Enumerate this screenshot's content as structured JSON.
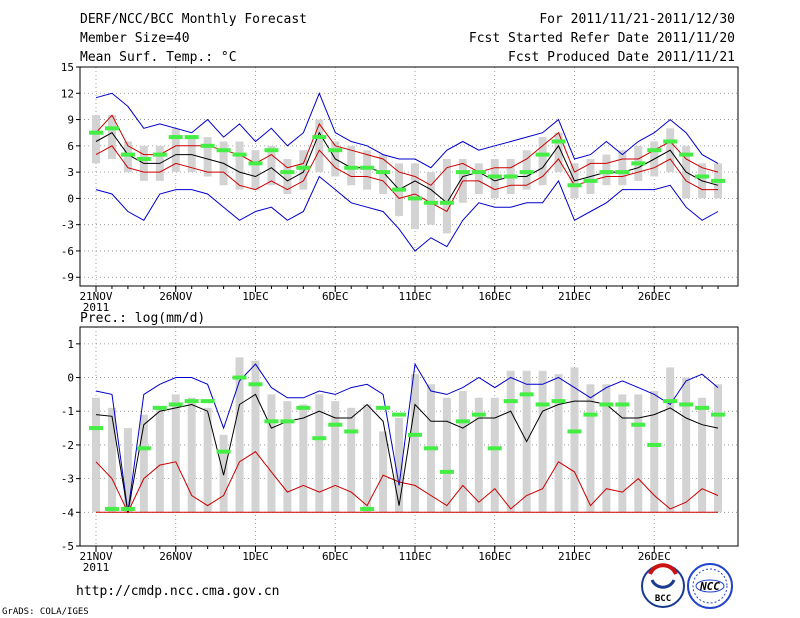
{
  "header": {
    "title": "DERF/NCC/BCC Monthly Forecast",
    "member_size": "Member Size=40",
    "variable": "Mean Surf. Temp.: °C",
    "period": "For 2011/11/21-2011/12/30",
    "started": "Fcst Started Refer Date 2011/11/20",
    "produced": "Fcst Produced Date 2011/11/21"
  },
  "footer": {
    "url": "http://cmdp.ncc.cma.gov.cn",
    "grads_credit": "GrADS: COLA/IGES",
    "logo_bcc": "BCC",
    "logo_ncc": "NCC"
  },
  "colors": {
    "envelope": "#0000cc",
    "spread": "#cc0000",
    "mean": "#000000",
    "observed": "#44ee44",
    "box": "#d3d3d3"
  },
  "chart_data": [
    {
      "type": "line",
      "title": "Mean Surf. Temp.: °C",
      "ylim": [
        -10,
        15
      ],
      "yticks": [
        -9,
        -6,
        -3,
        0,
        3,
        6,
        9,
        12,
        15
      ],
      "xticks": [
        {
          "day": 1,
          "label": "21NOV"
        },
        {
          "day": 6,
          "label": "26NOV"
        },
        {
          "day": 11,
          "label": "1DEC"
        },
        {
          "day": 16,
          "label": "6DEC"
        },
        {
          "day": 21,
          "label": "11DEC"
        },
        {
          "day": 26,
          "label": "16DEC"
        },
        {
          "day": 31,
          "label": "21DEC"
        },
        {
          "day": 36,
          "label": "26DEC"
        }
      ],
      "year_label": "2011",
      "x": [
        1,
        2,
        3,
        4,
        5,
        6,
        7,
        8,
        9,
        10,
        11,
        12,
        13,
        14,
        15,
        16,
        17,
        18,
        19,
        20,
        21,
        22,
        23,
        24,
        25,
        26,
        27,
        28,
        29,
        30,
        31,
        32,
        33,
        34,
        35,
        36,
        37,
        38,
        39,
        40
      ],
      "series": [
        {
          "name": "max",
          "values": [
            11.5,
            12,
            10.5,
            8,
            8.5,
            8,
            7.5,
            9,
            7,
            8.5,
            6.5,
            8,
            6,
            7.5,
            12,
            7.5,
            6.5,
            6,
            5,
            4.5,
            4.5,
            3.5,
            5.5,
            6.5,
            5.5,
            6,
            6.5,
            7,
            7.5,
            9,
            4.5,
            5,
            6.5,
            5,
            6.5,
            7.5,
            9,
            7.5,
            5,
            4
          ]
        },
        {
          "name": "upper",
          "values": [
            7.5,
            9.5,
            6,
            5,
            5,
            6,
            6,
            6,
            5.5,
            5,
            4,
            5,
            3.5,
            4,
            8.5,
            6,
            5.5,
            5,
            4.5,
            3,
            2.5,
            1.5,
            3.5,
            4,
            3,
            3.5,
            3.5,
            4.5,
            6,
            7.5,
            3,
            4,
            4,
            4.5,
            4.5,
            5.5,
            6.5,
            4.5,
            3.5,
            3
          ]
        },
        {
          "name": "mean",
          "values": [
            6.5,
            7.5,
            5,
            4,
            4,
            5,
            5,
            4.5,
            4,
            3,
            2.5,
            3.5,
            2,
            3,
            7.5,
            4.5,
            3.5,
            3.5,
            3,
            1,
            2,
            1,
            -0.5,
            2.5,
            3,
            2,
            2.5,
            2.5,
            3.5,
            6,
            2,
            2.5,
            3,
            3,
            3.5,
            4.5,
            5.5,
            3,
            2,
            1.5
          ]
        },
        {
          "name": "lower",
          "values": [
            5,
            6,
            3.5,
            3,
            3,
            4,
            3.5,
            3,
            3,
            1.5,
            1,
            2,
            1,
            2,
            5.5,
            3.5,
            2.5,
            2.5,
            2,
            0,
            0.5,
            -0.5,
            -1.5,
            2,
            2,
            1,
            1.5,
            1.5,
            2.5,
            4.5,
            1.5,
            2,
            2.5,
            2.5,
            3,
            3.5,
            4.5,
            2,
            1,
            1
          ]
        },
        {
          "name": "min",
          "values": [
            1,
            0.5,
            -1.5,
            -2.5,
            0.5,
            1,
            1,
            0.5,
            -1,
            -2.5,
            -1.5,
            -1,
            -2.5,
            -1.5,
            2.5,
            1,
            -0.5,
            -1,
            -1.5,
            -3.5,
            -6,
            -4.5,
            -5.5,
            -2.5,
            -0.5,
            -1,
            -1,
            -0.5,
            -0.5,
            2,
            -2.5,
            -1.5,
            -0.5,
            1,
            1,
            1,
            1.5,
            -1,
            -2.5,
            -1.5
          ]
        },
        {
          "name": "observed",
          "values": [
            7.5,
            8,
            5,
            4.5,
            5,
            7,
            7,
            6,
            5.5,
            5,
            4,
            5.5,
            3,
            3.5,
            7,
            5.5,
            3.5,
            3.5,
            3,
            1,
            0,
            -0.5,
            -0.5,
            3,
            3,
            2.5,
            2.5,
            3,
            5,
            6.5,
            1.5,
            2,
            3,
            3,
            4,
            5.5,
            6.5,
            5,
            2.5,
            2
          ]
        },
        {
          "name": "box_top",
          "values": [
            9.5,
            9.5,
            6.5,
            6,
            6,
            8,
            7,
            7,
            6.5,
            6.5,
            5.5,
            6,
            4.5,
            5.5,
            9,
            6.5,
            6,
            5.5,
            5,
            4,
            4,
            3,
            4.5,
            4.5,
            4,
            4.5,
            4.5,
            5.5,
            7,
            7.5,
            4,
            4.5,
            5,
            5.5,
            6,
            6.5,
            8,
            6,
            4,
            4
          ]
        },
        {
          "name": "box_bottom",
          "values": [
            4,
            4.5,
            3,
            2,
            2,
            3,
            3,
            2.5,
            1.5,
            1,
            1,
            1.5,
            0.5,
            1,
            3,
            2.5,
            1.5,
            1,
            0.5,
            -2,
            -3.5,
            -3,
            -4,
            -0.5,
            0.5,
            0,
            0.5,
            1,
            1.5,
            3,
            0,
            0.5,
            1.5,
            1.5,
            2,
            2.5,
            3,
            0,
            0,
            0
          ]
        }
      ]
    },
    {
      "type": "line",
      "title": "Prec.: log(mm/d)",
      "ylim": [
        -5,
        1.5
      ],
      "yticks": [
        -5,
        -4,
        -3,
        -2,
        -1,
        0,
        1
      ],
      "xticks": [
        {
          "day": 1,
          "label": "21NOV"
        },
        {
          "day": 6,
          "label": "26NOV"
        },
        {
          "day": 11,
          "label": "1DEC"
        },
        {
          "day": 16,
          "label": "6DEC"
        },
        {
          "day": 21,
          "label": "11DEC"
        },
        {
          "day": 26,
          "label": "16DEC"
        },
        {
          "day": 31,
          "label": "21DEC"
        },
        {
          "day": 36,
          "label": "26DEC"
        }
      ],
      "year_label": "2011",
      "x": [
        1,
        2,
        3,
        4,
        5,
        6,
        7,
        8,
        9,
        10,
        11,
        12,
        13,
        14,
        15,
        16,
        17,
        18,
        19,
        20,
        21,
        22,
        23,
        24,
        25,
        26,
        27,
        28,
        29,
        30,
        31,
        32,
        33,
        34,
        35,
        36,
        37,
        38,
        39,
        40
      ],
      "series": [
        {
          "name": "max",
          "values": [
            -0.4,
            -0.5,
            -4,
            -0.5,
            -0.2,
            0,
            0,
            -0.2,
            -1.5,
            -0.1,
            0.4,
            -0.3,
            -0.6,
            -0.6,
            -0.4,
            -0.5,
            -0.3,
            -0.2,
            -0.5,
            -3.2,
            0.4,
            -0.4,
            -0.5,
            -0.3,
            0,
            -0.3,
            0,
            -0.2,
            -0.2,
            0,
            -0.3,
            -0.6,
            -0.3,
            -0.1,
            -0.3,
            -0.5,
            -0.8,
            -0.1,
            0.1,
            -0.3
          ]
        },
        {
          "name": "mean",
          "values": [
            -1.1,
            -1.15,
            -4,
            -1.4,
            -1,
            -0.9,
            -0.8,
            -1,
            -2.9,
            -0.8,
            -0.5,
            -1.5,
            -1.3,
            -1.2,
            -1,
            -1.2,
            -1.2,
            -0.8,
            -1.3,
            -3.8,
            -0.8,
            -1.3,
            -1.3,
            -1.5,
            -1.2,
            -1.2,
            -1,
            -1.9,
            -1,
            -0.8,
            -0.7,
            -0.7,
            -0.8,
            -1.2,
            -1.2,
            -1.1,
            -0.9,
            -1.2,
            -1.4,
            -1.5
          ]
        },
        {
          "name": "min",
          "values": [
            -2.5,
            -3,
            -4,
            -3,
            -2.6,
            -2.5,
            -3.5,
            -3.8,
            -3.5,
            -2.5,
            -2.2,
            -2.8,
            -3.4,
            -3.2,
            -3.4,
            -3.2,
            -3.4,
            -3.8,
            -2.9,
            -3.1,
            -3.2,
            -3.5,
            -3.8,
            -3.2,
            -3.7,
            -3.3,
            -3.9,
            -3.5,
            -3.3,
            -2.5,
            -2.8,
            -3.8,
            -3.3,
            -3.4,
            -3,
            -3.5,
            -3.9,
            -3.7,
            -3.3,
            -3.5
          ]
        },
        {
          "name": "floor",
          "values": [
            -4,
            -4,
            -4,
            -4,
            -4,
            -4,
            -4,
            -4,
            -4,
            -4,
            -4,
            -4,
            -4,
            -4,
            -4,
            -4,
            -4,
            -4,
            -4,
            -4,
            -4,
            -4,
            -4,
            -4,
            -4,
            -4,
            -4,
            -4,
            -4,
            -4,
            -4,
            -4,
            -4,
            -4,
            -4,
            -4,
            -4,
            -4,
            -4,
            -4
          ]
        },
        {
          "name": "observed",
          "values": [
            -1.5,
            -3.9,
            -3.9,
            -2.1,
            -0.9,
            -0.8,
            -0.7,
            -0.7,
            -2.2,
            0,
            -0.2,
            -1.3,
            -1.3,
            -0.9,
            -1.8,
            -1.4,
            -1.6,
            -3.9,
            -0.9,
            -1.1,
            -1.7,
            -2.1,
            -2.8,
            -1.3,
            -1.1,
            -2.1,
            -0.7,
            -0.5,
            -0.8,
            -0.7,
            -1.6,
            -1.1,
            -0.8,
            -0.8,
            -1.4,
            -2,
            -0.7,
            -0.8,
            -0.9,
            -1.1
          ]
        },
        {
          "name": "box_top",
          "values": [
            -0.6,
            -0.9,
            -1.5,
            -1.1,
            -0.9,
            -0.5,
            -0.6,
            -0.9,
            -1.7,
            0.6,
            0.5,
            -0.5,
            -0.7,
            -0.8,
            -0.5,
            -0.7,
            -0.9,
            -0.8,
            -1.6,
            -1.2,
            0.1,
            -0.2,
            -0.6,
            -0.4,
            -0.6,
            -0.6,
            0.2,
            0.2,
            0.2,
            0.1,
            0.3,
            -0.2,
            -0.2,
            -0.5,
            -0.5,
            -0.4,
            0.3,
            0,
            -0.6,
            -0.2
          ]
        },
        {
          "name": "box_bottom",
          "values": [
            -4,
            -4,
            -4,
            -4,
            -4,
            -4,
            -4,
            -4,
            -4,
            -4,
            -4,
            -4,
            -4,
            -4,
            -4,
            -4,
            -4,
            -4,
            -4,
            -4,
            -4,
            -4,
            -4,
            -4,
            -4,
            -4,
            -4,
            -4,
            -4,
            -4,
            -4,
            -4,
            -4,
            -4,
            -4,
            -4,
            -4,
            -4,
            -4,
            -4
          ]
        }
      ]
    }
  ]
}
